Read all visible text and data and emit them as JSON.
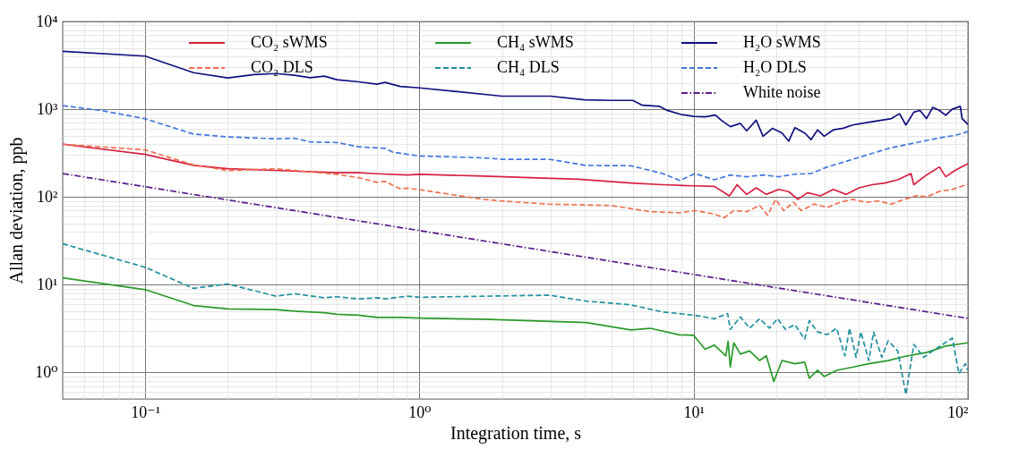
{
  "chart_data": {
    "type": "line",
    "xlabel": "Integration time, s",
    "ylabel": "Allan deviation, ppb",
    "log": "xy",
    "grid": true,
    "legend": "top",
    "xlim": [
      0.05,
      100
    ],
    "ylim": [
      0.5,
      10000
    ],
    "xticks": [
      {
        "value": 0.05,
        "label": null
      },
      {
        "value": 0.06,
        "label": null
      },
      {
        "value": 0.07,
        "label": null
      },
      {
        "value": 0.08,
        "label": null
      },
      {
        "value": 0.09,
        "label": null
      },
      {
        "value": 0.1,
        "label": "10⁻¹"
      },
      {
        "value": 0.2,
        "label": null
      },
      {
        "value": 0.3,
        "label": null
      },
      {
        "value": 0.4,
        "label": null
      },
      {
        "value": 0.5,
        "label": null
      },
      {
        "value": 0.6,
        "label": null
      },
      {
        "value": 0.7,
        "label": null
      },
      {
        "value": 0.8,
        "label": null
      },
      {
        "value": 0.9,
        "label": null
      },
      {
        "value": 1,
        "label": "10⁰"
      },
      {
        "value": 2,
        "label": null
      },
      {
        "value": 3,
        "label": null
      },
      {
        "value": 4,
        "label": null
      },
      {
        "value": 5,
        "label": null
      },
      {
        "value": 6,
        "label": null
      },
      {
        "value": 7,
        "label": null
      },
      {
        "value": 8,
        "label": null
      },
      {
        "value": 9,
        "label": null
      },
      {
        "value": 10,
        "label": "10¹"
      },
      {
        "value": 20,
        "label": null
      },
      {
        "value": 30,
        "label": null
      },
      {
        "value": 40,
        "label": null
      },
      {
        "value": 50,
        "label": null
      },
      {
        "value": 60,
        "label": null
      },
      {
        "value": 70,
        "label": null
      },
      {
        "value": 80,
        "label": null
      },
      {
        "value": 90,
        "label": null
      },
      {
        "value": 100,
        "label": "10²"
      }
    ],
    "yticks": [
      {
        "value": 0.5,
        "label": null
      },
      {
        "value": 0.6,
        "label": null
      },
      {
        "value": 0.7,
        "label": null
      },
      {
        "value": 0.8,
        "label": null
      },
      {
        "value": 0.9,
        "label": null
      },
      {
        "value": 1,
        "label": "10⁰"
      },
      {
        "value": 2,
        "label": null
      },
      {
        "value": 3,
        "label": null
      },
      {
        "value": 4,
        "label": null
      },
      {
        "value": 5,
        "label": null
      },
      {
        "value": 6,
        "label": null
      },
      {
        "value": 7,
        "label": null
      },
      {
        "value": 8,
        "label": null
      },
      {
        "value": 9,
        "label": null
      },
      {
        "value": 10,
        "label": "10¹"
      },
      {
        "value": 20,
        "label": null
      },
      {
        "value": 30,
        "label": null
      },
      {
        "value": 40,
        "label": null
      },
      {
        "value": 50,
        "label": null
      },
      {
        "value": 60,
        "label": null
      },
      {
        "value": 70,
        "label": null
      },
      {
        "value": 80,
        "label": null
      },
      {
        "value": 90,
        "label": null
      },
      {
        "value": 100,
        "label": "10²"
      },
      {
        "value": 200,
        "label": null
      },
      {
        "value": 300,
        "label": null
      },
      {
        "value": 400,
        "label": null
      },
      {
        "value": 500,
        "label": null
      },
      {
        "value": 600,
        "label": null
      },
      {
        "value": 700,
        "label": null
      },
      {
        "value": 800,
        "label": null
      },
      {
        "value": 900,
        "label": null
      },
      {
        "value": 1000,
        "label": "10³"
      },
      {
        "value": 2000,
        "label": null
      },
      {
        "value": 3000,
        "label": null
      },
      {
        "value": 4000,
        "label": null
      },
      {
        "value": 5000,
        "label": null
      },
      {
        "value": 6000,
        "label": null
      },
      {
        "value": 7000,
        "label": null
      },
      {
        "value": 8000,
        "label": null
      },
      {
        "value": 9000,
        "label": null
      },
      {
        "value": 10000,
        "label": "10⁴"
      }
    ],
    "series": [
      {
        "name": "CO₂ sWMS",
        "color": "#d62040",
        "line_style": "solid",
        "x": [
          0.05,
          0.1,
          0.15,
          0.2,
          0.3,
          0.5,
          0.6,
          0.7,
          0.9,
          1.0,
          1.71,
          3.0,
          3.8,
          5.9,
          7.7,
          10,
          11.9,
          13.5,
          14.4,
          15.6,
          16.9,
          18.4,
          20.4,
          22.2,
          24.0,
          26.0,
          29.0,
          32.3,
          36.0,
          40.1,
          44.7,
          49.8,
          55.5,
          62.0,
          63.5,
          70.6,
          78.7,
          83.0,
          90.0,
          100
        ],
        "values": [
          399,
          306,
          229,
          210,
          201,
          189,
          189,
          184,
          178,
          181,
          173,
          163,
          159,
          144,
          138,
          134,
          132,
          103,
          138,
          107,
          127,
          107,
          122,
          115,
          94,
          112,
          103,
          122,
          107,
          127,
          138,
          144,
          157,
          185,
          138,
          178,
          220,
          170,
          202,
          239
        ]
      },
      {
        "name": "CO₂ DLS",
        "color": "#f07050",
        "line_style": "dashed",
        "x": [
          0.05,
          0.1,
          0.15,
          0.2,
          0.3,
          0.4,
          0.5,
          0.6,
          0.7,
          0.75,
          0.85,
          0.9,
          1.0,
          1.71,
          2.0,
          2.93,
          5.0,
          6.94,
          8.9,
          10.1,
          11.9,
          12.9,
          14.0,
          15.6,
          17.4,
          18.6,
          19.9,
          21.3,
          23.1,
          24.7,
          27.5,
          30.7,
          34.2,
          38.0,
          42.4,
          47.2,
          52.6,
          58.6,
          65.3,
          70.6,
          78.7,
          87.8,
          100
        ],
        "values": [
          399,
          344,
          232,
          200,
          210,
          193,
          181,
          166,
          147,
          150,
          124,
          126,
          121,
          94,
          90,
          83,
          80,
          68,
          66,
          70,
          64,
          58,
          70,
          68,
          80,
          62,
          94,
          70,
          87,
          70,
          83,
          76,
          87,
          94,
          87,
          90,
          83,
          94,
          104,
          100,
          116,
          122,
          140
        ]
      },
      {
        "name": "CH₄ sWMS",
        "color": "#2a9a2a",
        "line_style": "solid",
        "x": [
          0.05,
          0.1,
          0.15,
          0.2,
          0.3,
          0.35,
          0.45,
          0.5,
          0.6,
          0.7,
          0.85,
          1.0,
          1.71,
          4.05,
          5.9,
          6.94,
          8.86,
          10,
          11.0,
          11.9,
          13.1,
          13.35,
          13.6,
          14.0,
          14.8,
          16.0,
          17.4,
          18.4,
          19.6,
          21.0,
          23.4,
          25.4,
          26.4,
          28.3,
          29.9,
          33.2,
          38.0,
          43.5,
          51.2,
          60.2,
          70.6,
          83.0,
          100
        ],
        "values": [
          12.0,
          8.8,
          5.8,
          5.3,
          5.2,
          5.0,
          4.8,
          4.6,
          4.5,
          4.24,
          4.24,
          4.17,
          4.04,
          3.7,
          3.06,
          3.19,
          2.69,
          2.65,
          1.84,
          2.05,
          1.55,
          2.27,
          1.15,
          2.18,
          1.62,
          1.76,
          1.37,
          1.55,
          0.79,
          1.37,
          1.26,
          1.31,
          0.86,
          1.06,
          0.9,
          1.06,
          1.15,
          1.26,
          1.37,
          1.55,
          1.69,
          2.0,
          2.18
        ]
      },
      {
        "name": "CH₄ DLS",
        "color": "#2090a0",
        "line_style": "dashed",
        "x": [
          0.05,
          0.1,
          0.15,
          0.2,
          0.3,
          0.35,
          0.45,
          0.5,
          0.6,
          0.7,
          0.75,
          0.9,
          1.0,
          1.71,
          3.0,
          4.05,
          5.9,
          7.7,
          10,
          11.9,
          13.3,
          13.6,
          14.8,
          16.0,
          17.4,
          18.9,
          20.2,
          21.6,
          23.4,
          25.4,
          26.4,
          28.3,
          30.7,
          33.2,
          35.6,
          37.0,
          39.1,
          40.7,
          43.5,
          45.3,
          48.5,
          51.2,
          55.5,
          59.4,
          63.5,
          68.9,
          74.5,
          81.0,
          87.8,
          92.7,
          97.9,
          100
        ],
        "values": [
          29.3,
          15.8,
          9.1,
          10.2,
          7.4,
          7.9,
          7.1,
          7.3,
          6.9,
          7.1,
          6.9,
          7.4,
          7.2,
          7.4,
          7.6,
          6.5,
          5.9,
          4.9,
          4.5,
          4.1,
          4.7,
          3.1,
          4.3,
          3.2,
          4.1,
          3.2,
          4.1,
          3.1,
          3.5,
          2.4,
          3.9,
          2.9,
          2.7,
          3.2,
          1.55,
          3.2,
          1.49,
          2.9,
          1.37,
          2.9,
          1.49,
          2.3,
          1.76,
          0.56,
          2.09,
          1.49,
          1.76,
          2.09,
          2.47,
          0.97,
          1.26,
          1.06
        ]
      },
      {
        "name": "H₂O sWMS",
        "color": "#101080",
        "line_style": "solid",
        "x": [
          0.05,
          0.1,
          0.15,
          0.2,
          0.25,
          0.3,
          0.35,
          0.4,
          0.45,
          0.5,
          0.6,
          0.7,
          0.75,
          0.85,
          1.0,
          2,
          3,
          4,
          5,
          6,
          6.5,
          7.5,
          8,
          9,
          10,
          11,
          12,
          12.6,
          13.6,
          14.8,
          15.6,
          16.9,
          17.9,
          19.4,
          21,
          22.2,
          23.4,
          25.4,
          26.8,
          28.3,
          29.9,
          32.3,
          35.1,
          38,
          41.2,
          44.7,
          48.5,
          52.6,
          56.3,
          59.4,
          63.5,
          66.9,
          70.6,
          74.5,
          78.7,
          83,
          87.6,
          93.8,
          95.2,
          100
        ],
        "values": [
          4560,
          4030,
          2610,
          2270,
          2480,
          2550,
          2440,
          2290,
          2380,
          2170,
          2050,
          1930,
          2020,
          1820,
          1750,
          1410,
          1410,
          1280,
          1260,
          1260,
          1110,
          1080,
          970,
          870,
          830,
          820,
          860,
          750,
          633,
          690,
          567,
          750,
          491,
          607,
          535,
          433,
          617,
          535,
          451,
          582,
          491,
          582,
          607,
          661,
          690,
          719,
          750,
          782,
          889,
          661,
          927,
          967,
          782,
          1052,
          967,
          852,
          1000,
          1080,
          782,
          672
        ]
      },
      {
        "name": "H₂O DLS",
        "color": "#4477dd",
        "line_style": "dashed",
        "x": [
          0.05,
          0.07,
          0.1,
          0.15,
          0.2,
          0.3,
          0.35,
          0.4,
          0.5,
          0.6,
          0.75,
          0.8,
          1.0,
          1.71,
          2.0,
          3.0,
          4.05,
          5.9,
          7.7,
          8.9,
          10.1,
          11.9,
          13.6,
          15.6,
          17.9,
          20.4,
          23.4,
          26.8,
          30.7,
          35.1,
          40.1,
          45.9,
          52.6,
          60.2,
          68.8,
          78.7,
          90,
          100
        ],
        "values": [
          1100,
          960,
          778,
          521,
          484,
          460,
          467,
          424,
          417,
          373,
          358,
          324,
          293,
          279,
          269,
          268,
          229,
          227,
          185,
          154,
          185,
          157,
          178,
          170,
          178,
          170,
          182,
          185,
          220,
          249,
          283,
          322,
          365,
          397,
          433,
          471,
          504,
          557
        ]
      },
      {
        "name": "White noise",
        "color": "#5a1a8a",
        "line_style": "dashdot",
        "x": [
          0.05,
          100
        ],
        "values": [
          185,
          4.14
        ]
      }
    ]
  }
}
